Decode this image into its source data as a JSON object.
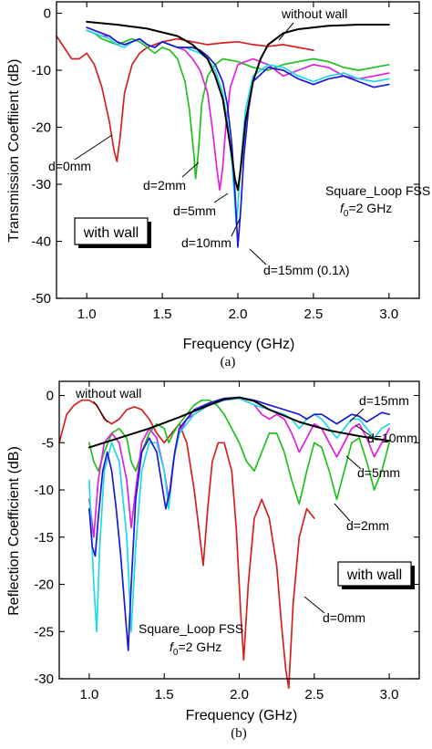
{
  "chart_data": [
    {
      "type": "line",
      "panel_caption": "(a)",
      "xlabel": "Frequency (GHz)",
      "ylabel": "Transmission Coeffiient (dB)",
      "xlim": [
        0.8,
        3.2
      ],
      "ylim": [
        -50,
        2
      ],
      "xticks": [
        1.0,
        1.5,
        2.0,
        2.5,
        3.0
      ],
      "xtick_labels": [
        "1.0",
        "1.5",
        "2.0",
        "2.5",
        "3.0"
      ],
      "yticks": [
        0,
        -10,
        -20,
        -30,
        -40,
        -50
      ],
      "ytick_labels": [
        "0",
        "-10",
        "-20",
        "-30",
        "-40",
        "-50"
      ],
      "inbox_label": "with wall",
      "info_line1": "Square_Loop FSS",
      "info_line2_sym": "f",
      "info_line2_sub": "0",
      "info_line2_rest": "=2 GHz",
      "series": [
        {
          "name": "d=0mm",
          "color": "#d42020",
          "x": [
            0.8,
            0.85,
            0.9,
            0.95,
            1.0,
            1.05,
            1.1,
            1.15,
            1.18,
            1.2,
            1.22,
            1.25,
            1.3,
            1.35,
            1.4,
            1.5,
            1.6,
            1.7,
            1.8,
            1.9,
            2.0,
            2.1,
            2.2,
            2.3,
            2.4,
            2.5
          ],
          "y": [
            -4,
            -6,
            -8,
            -8,
            -7,
            -9,
            -13,
            -19,
            -24,
            -26,
            -22,
            -14,
            -9,
            -7,
            -6,
            -5,
            -4.5,
            -5,
            -5.5,
            -5.2,
            -5,
            -5.5,
            -5.8,
            -5.5,
            -6,
            -6.5
          ]
        },
        {
          "name": "d=2mm",
          "color": "#20c020",
          "x": [
            1.0,
            1.05,
            1.1,
            1.15,
            1.2,
            1.25,
            1.3,
            1.35,
            1.4,
            1.45,
            1.5,
            1.55,
            1.6,
            1.65,
            1.68,
            1.71,
            1.72,
            1.74,
            1.76,
            1.8,
            1.85,
            1.9,
            2.0,
            2.1,
            2.2,
            2.3,
            2.4,
            2.5,
            2.6,
            2.7,
            2.8,
            2.9,
            3.0
          ],
          "y": [
            -3,
            -3.5,
            -4.5,
            -5,
            -5.5,
            -5,
            -4.5,
            -5,
            -6,
            -7,
            -6,
            -6.5,
            -8,
            -12,
            -17,
            -25,
            -29,
            -24,
            -16,
            -11,
            -9,
            -8,
            -8.5,
            -9.5,
            -10,
            -9,
            -8.5,
            -8,
            -8.5,
            -9.5,
            -10,
            -9.5,
            -9
          ]
        },
        {
          "name": "d=5mm",
          "color": "#e020e0",
          "x": [
            1.0,
            1.05,
            1.1,
            1.15,
            1.2,
            1.25,
            1.3,
            1.35,
            1.4,
            1.45,
            1.5,
            1.55,
            1.6,
            1.65,
            1.7,
            1.75,
            1.8,
            1.83,
            1.86,
            1.88,
            1.9,
            1.92,
            1.95,
            2.0,
            2.1,
            2.2,
            2.3,
            2.4,
            2.5,
            2.6,
            2.7,
            2.8,
            2.9,
            3.0
          ],
          "y": [
            -3,
            -3.5,
            -4,
            -4,
            -5,
            -5.5,
            -5,
            -4.5,
            -5.5,
            -6,
            -5,
            -5.5,
            -6,
            -6.5,
            -8,
            -10,
            -14,
            -20,
            -27,
            -31,
            -27,
            -20,
            -13,
            -9,
            -8,
            -9,
            -11,
            -10,
            -9,
            -9.5,
            -11,
            -11.5,
            -11,
            -10.5
          ]
        },
        {
          "name": "d=10mm",
          "color": "#20d8e8",
          "x": [
            1.0,
            1.05,
            1.1,
            1.15,
            1.2,
            1.25,
            1.3,
            1.35,
            1.4,
            1.45,
            1.5,
            1.55,
            1.6,
            1.65,
            1.7,
            1.75,
            1.8,
            1.85,
            1.9,
            1.93,
            1.96,
            1.98,
            1.99,
            2.0,
            2.02,
            2.05,
            2.1,
            2.2,
            2.3,
            2.4,
            2.5,
            2.6,
            2.7,
            2.8,
            2.9,
            3.0
          ],
          "y": [
            -3,
            -3.5,
            -4,
            -4.5,
            -5.5,
            -6,
            -5,
            -4.5,
            -5.5,
            -6,
            -5,
            -5.5,
            -6,
            -6,
            -6.5,
            -7,
            -8,
            -10,
            -14,
            -19,
            -26,
            -33,
            -37,
            -34,
            -26,
            -17,
            -11,
            -9,
            -9.5,
            -11,
            -12,
            -11,
            -10.5,
            -11.5,
            -12,
            -11.5
          ]
        },
        {
          "name": "d=15mm (0.1λ)",
          "color": "#1a1ad0",
          "x": [
            1.0,
            1.05,
            1.1,
            1.15,
            1.2,
            1.25,
            1.3,
            1.35,
            1.4,
            1.45,
            1.5,
            1.55,
            1.6,
            1.65,
            1.7,
            1.75,
            1.8,
            1.85,
            1.9,
            1.93,
            1.96,
            1.98,
            2.0,
            2.02,
            2.04,
            2.07,
            2.1,
            2.2,
            2.3,
            2.4,
            2.5,
            2.6,
            2.7,
            2.8,
            2.9,
            3.0
          ],
          "y": [
            -2.5,
            -3,
            -3.5,
            -4,
            -5,
            -5.5,
            -5,
            -4.5,
            -5.5,
            -6,
            -5,
            -5.5,
            -6,
            -6,
            -6,
            -6.5,
            -7.5,
            -9,
            -12,
            -16,
            -23,
            -31,
            -41,
            -34,
            -25,
            -17,
            -12,
            -9.5,
            -10,
            -11.5,
            -12.5,
            -11.5,
            -11,
            -12,
            -13,
            -12.5
          ]
        },
        {
          "name": "without wall",
          "color": "#000000",
          "x": [
            1.0,
            1.2,
            1.4,
            1.6,
            1.7,
            1.8,
            1.85,
            1.9,
            1.93,
            1.96,
            1.98,
            2.0,
            2.02,
            2.05,
            2.1,
            2.15,
            2.2,
            2.3,
            2.4,
            2.5,
            2.6,
            2.8,
            3.0
          ],
          "y": [
            -1.5,
            -2,
            -2.7,
            -4,
            -5.5,
            -8,
            -11,
            -15,
            -20,
            -25,
            -29,
            -31,
            -27,
            -19,
            -12,
            -8,
            -5.5,
            -3.5,
            -2.8,
            -2.5,
            -2.2,
            -2,
            -2
          ]
        }
      ],
      "annotations": [
        "d=0mm",
        "d=2mm",
        "d=5mm",
        "d=10mm",
        "d=15mm (0.1λ)",
        "without wall"
      ]
    },
    {
      "type": "line",
      "panel_caption": "(b)",
      "xlabel": "Frequency (GHz)",
      "ylabel": "Reflection Coefficient (dB)",
      "xlim": [
        0.8,
        3.2
      ],
      "ylim": [
        -30,
        1.5
      ],
      "xticks": [
        1.0,
        1.5,
        2.0,
        2.5,
        3.0
      ],
      "xtick_labels": [
        "1.0",
        "1.5",
        "2.0",
        "2.5",
        "3.0"
      ],
      "yticks": [
        0,
        -5,
        -10,
        -15,
        -20,
        -25,
        -30
      ],
      "ytick_labels": [
        "0",
        "-5",
        "-10",
        "-15",
        "-20",
        "-25",
        "-30"
      ],
      "inbox_label": "with wall",
      "info_line1": "Square_Loop FSS",
      "info_line2_sym": "f",
      "info_line2_sub": "0",
      "info_line2_rest": "=2 GHz",
      "series": [
        {
          "name": "d=0mm",
          "color": "#d42020",
          "x": [
            0.8,
            0.85,
            0.9,
            0.95,
            1.0,
            1.05,
            1.1,
            1.15,
            1.2,
            1.25,
            1.3,
            1.35,
            1.4,
            1.45,
            1.5,
            1.55,
            1.6,
            1.65,
            1.7,
            1.73,
            1.76,
            1.79,
            1.82,
            1.86,
            1.9,
            1.95,
            1.98,
            2.01,
            2.03,
            2.06,
            2.1,
            2.15,
            2.2,
            2.25,
            2.28,
            2.31,
            2.33,
            2.36,
            2.4,
            2.45,
            2.5
          ],
          "y": [
            -5,
            -2,
            -1,
            -0.5,
            -0.5,
            -1,
            -2.5,
            -3,
            -2.5,
            -1.5,
            -1.2,
            -1.5,
            -2.5,
            -4,
            -5,
            -4,
            -3,
            -5,
            -10,
            -14,
            -18,
            -12,
            -7,
            -5,
            -5,
            -8,
            -14,
            -23,
            -28,
            -20,
            -13,
            -11,
            -13,
            -18,
            -24,
            -29,
            -31,
            -22,
            -15,
            -12,
            -13
          ]
        },
        {
          "name": "d=2mm",
          "color": "#20c020",
          "x": [
            1.0,
            1.03,
            1.06,
            1.1,
            1.15,
            1.2,
            1.25,
            1.28,
            1.31,
            1.35,
            1.4,
            1.45,
            1.5,
            1.53,
            1.56,
            1.6,
            1.65,
            1.7,
            1.75,
            1.8,
            1.85,
            1.9,
            1.95,
            2.0,
            2.05,
            2.1,
            2.15,
            2.2,
            2.25,
            2.3,
            2.35,
            2.4,
            2.45,
            2.5,
            2.55,
            2.6,
            2.65,
            2.7,
            2.75,
            2.8,
            2.85,
            2.9,
            2.95,
            3.0
          ],
          "y": [
            -5,
            -7,
            -8,
            -6,
            -4,
            -3.5,
            -4.5,
            -7,
            -8,
            -6,
            -4,
            -3,
            -3.5,
            -5,
            -4,
            -3,
            -2,
            -1,
            -0.5,
            -0.5,
            -1,
            -2,
            -3.5,
            -5,
            -7,
            -8,
            -6,
            -4,
            -4,
            -6,
            -9,
            -11.5,
            -8,
            -5,
            -5.5,
            -8,
            -11,
            -8,
            -5,
            -4.5,
            -7,
            -10,
            -8,
            -5
          ]
        },
        {
          "name": "d=5mm",
          "color": "#e020e0",
          "x": [
            1.0,
            1.03,
            1.06,
            1.1,
            1.15,
            1.2,
            1.25,
            1.28,
            1.31,
            1.35,
            1.4,
            1.45,
            1.5,
            1.53,
            1.56,
            1.6,
            1.65,
            1.7,
            1.8,
            1.9,
            2.0,
            2.1,
            2.15,
            2.2,
            2.25,
            2.3,
            2.35,
            2.4,
            2.45,
            2.5,
            2.55,
            2.6,
            2.65,
            2.7,
            2.75,
            2.8,
            2.85,
            2.9,
            2.95,
            3.0
          ],
          "y": [
            -11,
            -15,
            -9,
            -5,
            -4,
            -5,
            -9,
            -14,
            -10,
            -5,
            -3.5,
            -4.5,
            -8,
            -11,
            -7,
            -4,
            -2.5,
            -2,
            -1,
            -0.5,
            -0.3,
            -1,
            -2,
            -2.5,
            -2,
            -2.5,
            -4,
            -6,
            -4.5,
            -3,
            -3.5,
            -5,
            -6.5,
            -5,
            -3.5,
            -3,
            -4.5,
            -6.5,
            -5,
            -3.5
          ]
        },
        {
          "name": "d=10mm",
          "color": "#20d8e8",
          "x": [
            1.0,
            1.03,
            1.05,
            1.07,
            1.1,
            1.15,
            1.2,
            1.25,
            1.28,
            1.31,
            1.35,
            1.4,
            1.45,
            1.5,
            1.53,
            1.56,
            1.6,
            1.65,
            1.7,
            1.8,
            1.9,
            2.0,
            2.1,
            2.2,
            2.3,
            2.35,
            2.4,
            2.45,
            2.5,
            2.55,
            2.6,
            2.65,
            2.7,
            2.75,
            2.8,
            2.85,
            2.9,
            2.95,
            3.0
          ],
          "y": [
            -9,
            -20,
            -25,
            -16,
            -8,
            -5,
            -7,
            -15,
            -25,
            -16,
            -8,
            -5,
            -5,
            -8,
            -12,
            -7,
            -4,
            -3,
            -2,
            -1,
            -0.5,
            -0.3,
            -1,
            -1.5,
            -2,
            -2.5,
            -3.5,
            -2.5,
            -2,
            -2.5,
            -3.5,
            -4.5,
            -3.5,
            -2.5,
            -2.5,
            -3.5,
            -4.5,
            -3.5,
            -3
          ]
        },
        {
          "name": "d=15mm",
          "color": "#1a1ad0",
          "x": [
            1.0,
            1.02,
            1.04,
            1.06,
            1.09,
            1.12,
            1.15,
            1.18,
            1.21,
            1.24,
            1.26,
            1.28,
            1.31,
            1.35,
            1.4,
            1.45,
            1.48,
            1.51,
            1.54,
            1.57,
            1.6,
            1.65,
            1.7,
            1.8,
            1.9,
            2.0,
            2.1,
            2.2,
            2.3,
            2.4,
            2.45,
            2.5,
            2.55,
            2.6,
            2.65,
            2.7,
            2.75,
            2.8,
            2.85,
            2.9,
            2.95,
            3.0
          ],
          "y": [
            -12,
            -16,
            -17,
            -13,
            -8,
            -6,
            -8,
            -12,
            -17,
            -23,
            -27,
            -20,
            -11,
            -6,
            -4.5,
            -6,
            -9,
            -12,
            -10,
            -6,
            -3.5,
            -2.5,
            -1.5,
            -0.8,
            -0.3,
            -0.2,
            -0.5,
            -1,
            -1.5,
            -2,
            -2.5,
            -2,
            -2,
            -2.5,
            -3,
            -2.5,
            -2,
            -2.2,
            -2.8,
            -2.3,
            -1.8,
            -2
          ]
        },
        {
          "name": "without wall",
          "color": "#000000",
          "x": [
            1.0,
            1.2,
            1.4,
            1.6,
            1.8,
            1.9,
            2.0,
            2.1,
            2.2,
            2.4,
            2.6,
            2.8,
            3.0
          ],
          "y": [
            -5.5,
            -4.5,
            -3.5,
            -2.3,
            -1,
            -0.4,
            -0.2,
            -0.6,
            -1.5,
            -2.8,
            -3.7,
            -4.3,
            -4.8
          ]
        }
      ],
      "annotations": [
        "without wall",
        "d=15mm",
        "d=10mm",
        "d=5mm",
        "d=2mm",
        "d=0mm"
      ]
    }
  ]
}
